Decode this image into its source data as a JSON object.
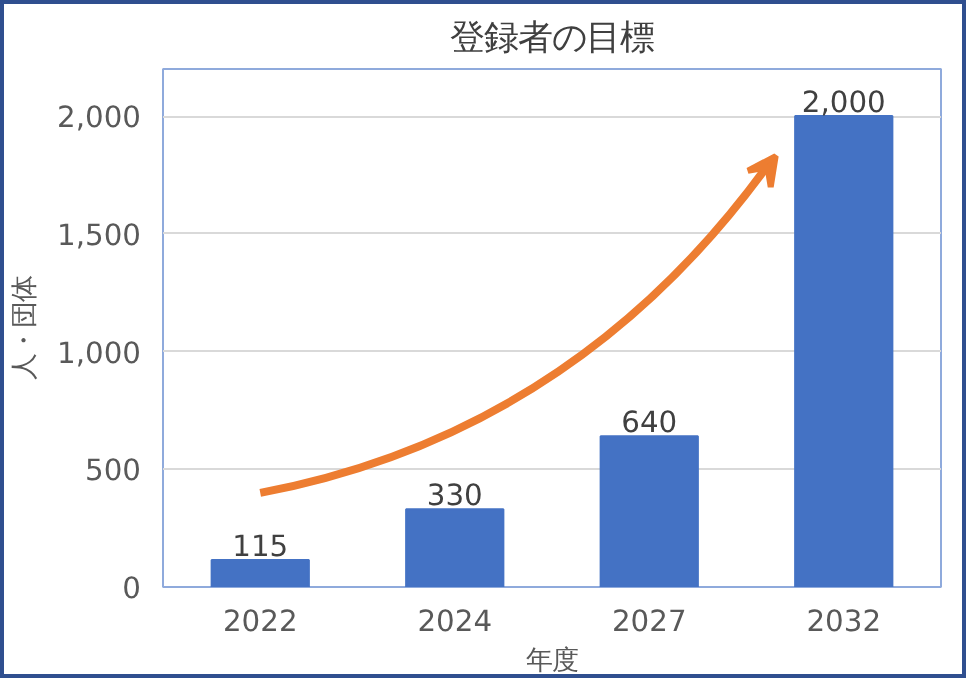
{
  "chart_data": {
    "type": "bar",
    "title": "登録者の目標",
    "xlabel": "年度",
    "ylabel": "人・団体",
    "categories": [
      "2022",
      "2024",
      "2027",
      "2032"
    ],
    "values": [
      115,
      330,
      640,
      2000
    ],
    "color": "#4472c4",
    "ylim": [
      0,
      2200
    ],
    "yticks": [
      0,
      {
        "value": 500,
        "label": "500"
      },
      {
        "value": 1000,
        "label": "1,000"
      },
      {
        "value": 1500,
        "label": "1,500"
      },
      {
        "value": 2000,
        "label": "2,000"
      }
    ],
    "grid": "y",
    "value_labels": [
      "115",
      "330",
      "640",
      "2,000"
    ]
  }
}
